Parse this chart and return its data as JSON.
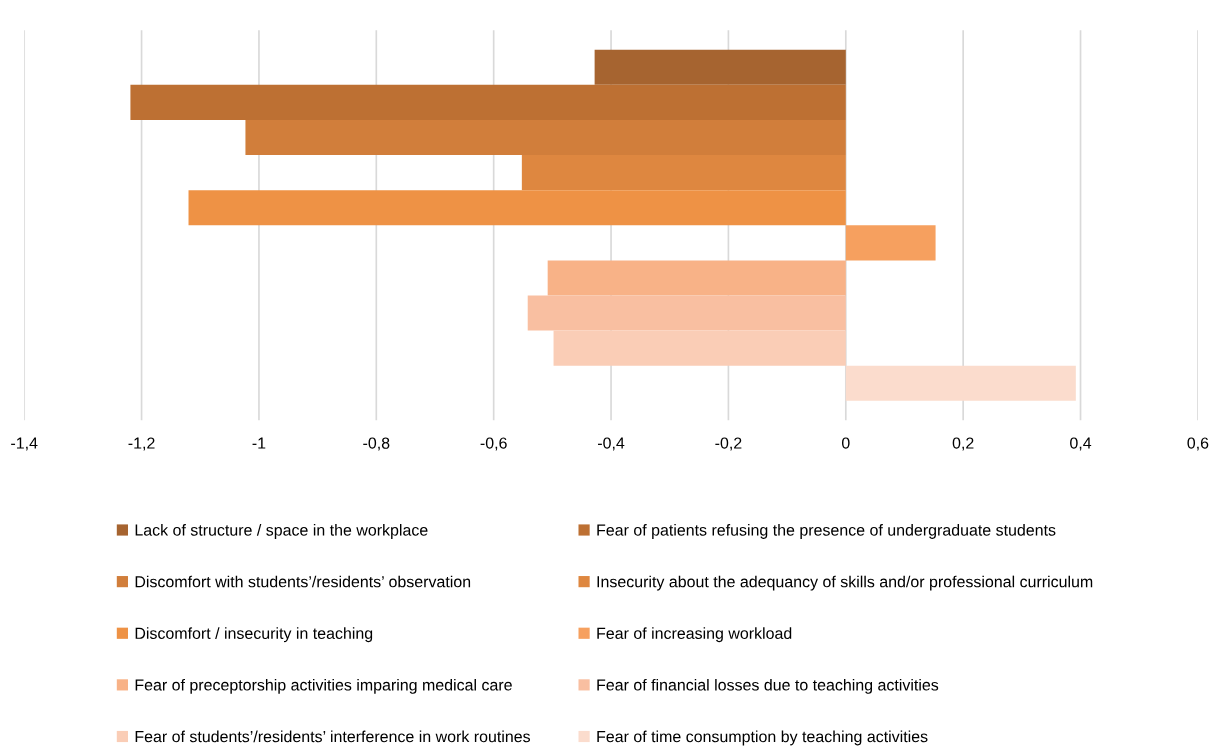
{
  "chart_data": {
    "type": "bar",
    "orientation": "horizontal",
    "categories": [
      null
    ],
    "xlim": [
      -1.4,
      0.6
    ],
    "xticks": [
      {
        "value": -1.4,
        "label": "-1,4"
      },
      {
        "value": -1.2,
        "label": "-1,2"
      },
      {
        "value": -1,
        "label": "-1"
      },
      {
        "value": -0.8,
        "label": "-0,8"
      },
      {
        "value": -0.6,
        "label": "-0,6"
      },
      {
        "value": -0.4,
        "label": "-0,4"
      },
      {
        "value": -0.2,
        "label": "-0,2"
      },
      {
        "value": 0,
        "label": "0"
      },
      {
        "value": 0.2,
        "label": "0,2"
      },
      {
        "value": 0.4,
        "label": "0,4"
      },
      {
        "value": 0.6,
        "label": "0,6"
      }
    ],
    "grid": "x",
    "legend": "bottom",
    "series": [
      {
        "name": "Lack of structure / space in the workplace",
        "color": "#a66430",
        "values": [
          -0.428
        ]
      },
      {
        "name": "Fear of patients refusing the presence of undergraduate students",
        "color": "#bd7033",
        "values": [
          -1.219
        ]
      },
      {
        "name": "Discomfort with students’/residents’ observation",
        "color": "#d17e3b",
        "values": [
          -1.023
        ]
      },
      {
        "name": "Insecurity about the adequancy of skills and/or professional curriculum",
        "color": "#de8740",
        "values": [
          -0.552
        ]
      },
      {
        "name": "Discomfort / insecurity in teaching",
        "color": "#ee9245",
        "values": [
          -1.12
        ]
      },
      {
        "name": "Fear of increasing workload",
        "color": "#f6a05f",
        "values": [
          0.153
        ]
      },
      {
        "name": "Fear of preceptorship activities imparing medical care",
        "color": "#f8b287",
        "values": [
          -0.508
        ]
      },
      {
        "name": "Fear of financial losses due to teaching activities",
        "color": "#f9bfa1",
        "values": [
          -0.542
        ]
      },
      {
        "name": "Fear of students’/residents’ interference in work routines",
        "color": "#facdb6",
        "values": [
          -0.498
        ]
      },
      {
        "name": "Fear of time consumption by teaching activities",
        "color": "#fbdccd",
        "values": [
          0.392
        ]
      }
    ]
  }
}
